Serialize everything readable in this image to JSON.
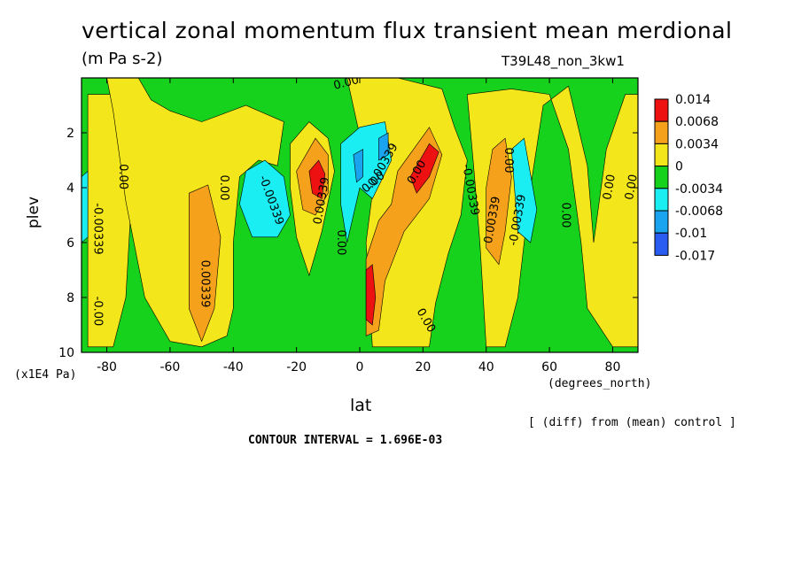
{
  "chart_data": {
    "type": "heatmap",
    "title": "vertical zonal momentum flux transient mean merdional",
    "units": "(m Pa s-2)",
    "run_label": "T39L48_non_3kw1",
    "xlabel": "lat",
    "x_units": "(degrees_north)",
    "ylabel": "plev",
    "y_units": "(x1E4 Pa)",
    "xlim": [
      -88,
      88
    ],
    "ylim": [
      10,
      0
    ],
    "x_ticks": [
      "-80",
      "-60",
      "-40",
      "-20",
      "0",
      "20",
      "40",
      "60",
      "80"
    ],
    "y_ticks": [
      "2",
      "4",
      "6",
      "8",
      "10"
    ],
    "diff_note": "[ (diff) from (mean) control ]",
    "contour_interval": "CONTOUR INTERVAL = 1.696E-03",
    "legend": [
      {
        "label": "0.014",
        "color": "#ee1111"
      },
      {
        "label": "0.0068",
        "color": "#f5a11b"
      },
      {
        "label": "0.0034",
        "color": "#f3e61a"
      },
      {
        "label": "0",
        "color": "#16d21c"
      },
      {
        "label": "-0.0034",
        "color": "#1aeef2"
      },
      {
        "label": "-0.0068",
        "color": "#1aa3ee"
      },
      {
        "label": "-0.01",
        "color": "#2a5cf2"
      },
      {
        "label": "-0.017",
        "color": ""
      }
    ],
    "background_color": "#16d21c",
    "regions": [
      {
        "value": 0.0034,
        "color": "#f3e61a",
        "shape": [
          [
            -86,
            0.6
          ],
          [
            -74,
            0.6
          ],
          [
            -72,
            4
          ],
          [
            -74,
            8
          ],
          [
            -78,
            9.8
          ],
          [
            -86,
            9.8
          ]
        ]
      },
      {
        "value": 0.0034,
        "color": "#f3e61a",
        "shape": [
          [
            -80,
            0
          ],
          [
            -70,
            0
          ],
          [
            -66,
            0.8
          ],
          [
            -60,
            1.2
          ],
          [
            -50,
            1.6
          ],
          [
            -36,
            1.0
          ],
          [
            -24,
            1.6
          ],
          [
            -26,
            3.2
          ],
          [
            -32,
            3.0
          ],
          [
            -38,
            3.6
          ],
          [
            -40,
            6
          ],
          [
            -40,
            8.4
          ],
          [
            -42,
            9.4
          ],
          [
            -50,
            9.8
          ],
          [
            -60,
            9.6
          ],
          [
            -68,
            8.0
          ],
          [
            -74,
            4.5
          ],
          [
            -78,
            1.2
          ]
        ]
      },
      {
        "value": 0.0034,
        "color": "#f3e61a",
        "shape": [
          [
            -4,
            0
          ],
          [
            12,
            0
          ],
          [
            26,
            0.4
          ],
          [
            30,
            1.8
          ],
          [
            34,
            3.0
          ],
          [
            32,
            5.0
          ],
          [
            28,
            6.4
          ],
          [
            24,
            8.2
          ],
          [
            22,
            9.8
          ],
          [
            4,
            9.8
          ],
          [
            2,
            6
          ],
          [
            4,
            4.2
          ]
        ]
      },
      {
        "value": 0.0034,
        "color": "#f3e61a",
        "shape": [
          [
            -22,
            2.4
          ],
          [
            -16,
            1.6
          ],
          [
            -10,
            2.2
          ],
          [
            -8,
            3.4
          ],
          [
            -12,
            5.6
          ],
          [
            -16,
            7.2
          ],
          [
            -20,
            5.8
          ],
          [
            -22,
            4.0
          ]
        ]
      },
      {
        "value": 0.0034,
        "color": "#f3e61a",
        "shape": [
          [
            34,
            0.6
          ],
          [
            48,
            0.4
          ],
          [
            60,
            0.6
          ],
          [
            66,
            2.6
          ],
          [
            70,
            6
          ],
          [
            72,
            8.4
          ],
          [
            80,
            9.8
          ],
          [
            88,
            9.8
          ],
          [
            88,
            0.6
          ],
          [
            84,
            0.6
          ],
          [
            78,
            2.6
          ],
          [
            74,
            6
          ],
          [
            72,
            3.2
          ],
          [
            66,
            0.3
          ],
          [
            58,
            1.0
          ],
          [
            54,
            4.0
          ],
          [
            50,
            8.0
          ],
          [
            46,
            9.8
          ],
          [
            40,
            9.8
          ],
          [
            38,
            6.0
          ],
          [
            36,
            3.2
          ]
        ]
      },
      {
        "value": 0.0068,
        "color": "#f5a11b",
        "shape": [
          [
            -54,
            4.2
          ],
          [
            -48,
            3.9
          ],
          [
            -44,
            5.8
          ],
          [
            -46,
            8.4
          ],
          [
            -50,
            9.6
          ],
          [
            -54,
            8.4
          ]
        ]
      },
      {
        "value": 0.0068,
        "color": "#f5a11b",
        "shape": [
          [
            -20,
            3.4
          ],
          [
            -14,
            2.2
          ],
          [
            -10,
            2.8
          ],
          [
            -10,
            4.2
          ],
          [
            -14,
            5.0
          ],
          [
            -18,
            4.8
          ]
        ]
      },
      {
        "value": 0.0068,
        "color": "#f5a11b",
        "shape": [
          [
            12,
            3.4
          ],
          [
            22,
            1.8
          ],
          [
            26,
            2.8
          ],
          [
            22,
            4.4
          ],
          [
            14,
            5.6
          ],
          [
            8,
            7.4
          ],
          [
            6,
            9.2
          ],
          [
            2,
            9.4
          ],
          [
            2,
            6.6
          ],
          [
            6,
            5.2
          ],
          [
            10,
            4.6
          ]
        ]
      },
      {
        "value": 0.0068,
        "color": "#f5a11b",
        "shape": [
          [
            42,
            2.6
          ],
          [
            46,
            2.2
          ],
          [
            48,
            3.6
          ],
          [
            46,
            5.6
          ],
          [
            44,
            6.8
          ],
          [
            40,
            6.2
          ],
          [
            40,
            4.0
          ]
        ]
      },
      {
        "value": 0.014,
        "color": "#ee1111",
        "shape": [
          [
            -16,
            3.4
          ],
          [
            -13,
            3.0
          ],
          [
            -11,
            3.5
          ],
          [
            -12,
            4.4
          ],
          [
            -15,
            4.2
          ]
        ]
      },
      {
        "value": 0.014,
        "color": "#ee1111",
        "shape": [
          [
            16,
            3.6
          ],
          [
            22,
            2.4
          ],
          [
            25,
            2.7
          ],
          [
            22,
            3.6
          ],
          [
            18,
            4.2
          ]
        ]
      },
      {
        "value": 0.014,
        "color": "#ee1111",
        "shape": [
          [
            2,
            7.0
          ],
          [
            4,
            6.8
          ],
          [
            5,
            8.0
          ],
          [
            4,
            9.0
          ],
          [
            2,
            8.8
          ]
        ]
      },
      {
        "value": -0.0034,
        "color": "#1aeef2",
        "shape": [
          [
            -36,
            3.4
          ],
          [
            -30,
            3.0
          ],
          [
            -24,
            3.6
          ],
          [
            -22,
            5.0
          ],
          [
            -26,
            5.8
          ],
          [
            -34,
            5.8
          ],
          [
            -38,
            4.6
          ]
        ]
      },
      {
        "value": -0.0034,
        "color": "#1aeef2",
        "shape": [
          [
            -6,
            2.4
          ],
          [
            0,
            1.8
          ],
          [
            8,
            1.6
          ],
          [
            10,
            3.0
          ],
          [
            4,
            4.4
          ],
          [
            0,
            4.0
          ],
          [
            -4,
            6.0
          ],
          [
            -6,
            4.6
          ]
        ]
      },
      {
        "value": -0.0034,
        "color": "#1aeef2",
        "shape": [
          [
            -88,
            3.6
          ],
          [
            -86,
            3.4
          ],
          [
            -86,
            5.8
          ],
          [
            -88,
            6.0
          ]
        ]
      },
      {
        "value": -0.0034,
        "color": "#1aeef2",
        "shape": [
          [
            48,
            2.6
          ],
          [
            52,
            2.2
          ],
          [
            56,
            4.8
          ],
          [
            54,
            6.0
          ],
          [
            50,
            5.6
          ]
        ]
      },
      {
        "value": -0.0068,
        "color": "#1aa3ee",
        "shape": [
          [
            -2,
            2.8
          ],
          [
            1,
            2.6
          ],
          [
            1,
            3.6
          ],
          [
            -1,
            3.8
          ]
        ]
      },
      {
        "value": -0.0068,
        "color": "#1aa3ee",
        "shape": [
          [
            6,
            2.2
          ],
          [
            9,
            2.0
          ],
          [
            9,
            2.8
          ],
          [
            6,
            3.0
          ]
        ]
      }
    ],
    "contour_labels": [
      {
        "text": "0.00",
        "x": -4,
        "y": 0.3,
        "rot": -15
      },
      {
        "text": "0.00",
        "x": -76,
        "y": 3.6,
        "rot": 90
      },
      {
        "text": "0.00",
        "x": -44,
        "y": 4.0,
        "rot": 90
      },
      {
        "text": "-0.00339",
        "x": -84,
        "y": 5.5,
        "rot": 90
      },
      {
        "text": "0.00339",
        "x": -50,
        "y": 7.5,
        "rot": 90
      },
      {
        "text": "-0.00339",
        "x": -29,
        "y": 4.5,
        "rot": 70
      },
      {
        "text": "-0.00",
        "x": -84,
        "y": 8.5,
        "rot": 90
      },
      {
        "text": "0.00339",
        "x": -11,
        "y": 4.5,
        "rot": -80
      },
      {
        "text": "0.00",
        "x": -7,
        "y": 6.0,
        "rot": 90
      },
      {
        "text": "-0.00339",
        "x": 8,
        "y": 3.3,
        "rot": -60
      },
      {
        "text": "0.00",
        "x": 5,
        "y": 3.9,
        "rot": -40
      },
      {
        "text": "0.00",
        "x": 19,
        "y": 3.5,
        "rot": -60
      },
      {
        "text": "0.00",
        "x": 20,
        "y": 8.9,
        "rot": 60
      },
      {
        "text": "-0.00339",
        "x": 34,
        "y": 4.1,
        "rot": 80
      },
      {
        "text": "0.00339",
        "x": 43,
        "y": 5.2,
        "rot": -80
      },
      {
        "text": "-0.00339",
        "x": 51,
        "y": 5.2,
        "rot": -80
      },
      {
        "text": "0.00",
        "x": 46,
        "y": 3.0,
        "rot": 90
      },
      {
        "text": "0.00",
        "x": 64,
        "y": 5.0,
        "rot": 90
      },
      {
        "text": "0.00",
        "x": 80,
        "y": 4.0,
        "rot": -80
      },
      {
        "text": "0.00",
        "x": 87,
        "y": 4.0,
        "rot": -80
      }
    ]
  }
}
